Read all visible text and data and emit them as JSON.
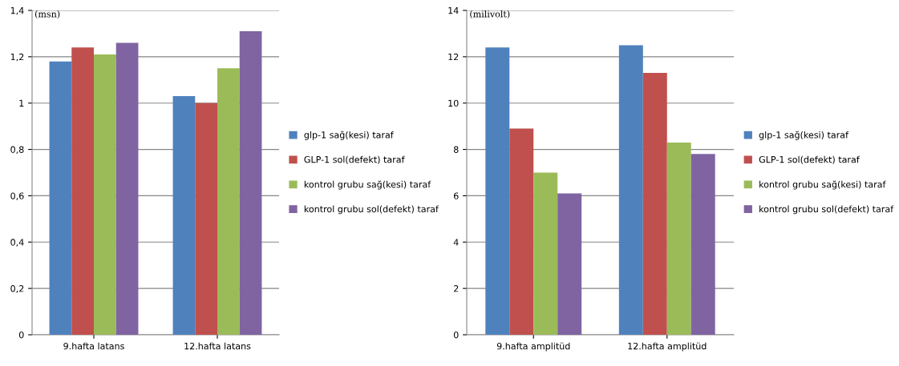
{
  "chart_data": [
    {
      "type": "bar",
      "ylabel": "(msn)",
      "categories": [
        "9.hafta latans",
        "12.hafta latans"
      ],
      "series": [
        {
          "name": "glp-1 sağ(kesi) taraf",
          "color": "#4f81bd",
          "values": [
            1.18,
            1.03
          ]
        },
        {
          "name": "GLP-1 sol(defekt) taraf",
          "color": "#c0504d",
          "values": [
            1.24,
            1.0
          ]
        },
        {
          "name": "kontrol grubu sağ(kesi) taraf",
          "color": "#9bbb59",
          "values": [
            1.21,
            1.15
          ]
        },
        {
          "name": "kontrol grubu sol(defekt) taraf",
          "color": "#8064a2",
          "values": [
            1.26,
            1.31
          ]
        }
      ],
      "ylim": [
        0,
        1.4
      ],
      "yticks": [
        0,
        {
          "value": 0.2,
          "label": "0,2"
        },
        {
          "value": 0.4,
          "label": "0,4"
        },
        {
          "value": 0.6,
          "label": "0,6"
        },
        {
          "value": 0.8,
          "label": "0,8"
        },
        1,
        {
          "value": 1.2,
          "label": "1,2"
        },
        {
          "value": 1.4,
          "label": "1,4"
        }
      ],
      "grid": "y",
      "legend": "right"
    },
    {
      "type": "bar",
      "ylabel": "(milivolt)",
      "categories": [
        "9.hafta amplitüd",
        "12.hafta amplitüd"
      ],
      "series": [
        {
          "name": "glp-1 sağ(kesi) taraf",
          "color": "#4f81bd",
          "values": [
            12.4,
            12.5
          ]
        },
        {
          "name": "GLP-1 sol(defekt) taraf",
          "color": "#c0504d",
          "values": [
            8.9,
            11.3
          ]
        },
        {
          "name": "kontrol grubu sağ(kesi) taraf",
          "color": "#9bbb59",
          "values": [
            7.0,
            8.3
          ]
        },
        {
          "name": "kontrol grubu sol(defekt) taraf",
          "color": "#8064a2",
          "values": [
            6.1,
            7.8
          ]
        }
      ],
      "ylim": [
        0,
        14
      ],
      "yticks": [
        0,
        2,
        4,
        6,
        8,
        10,
        12,
        14
      ],
      "grid": "y",
      "legend": "right"
    }
  ]
}
